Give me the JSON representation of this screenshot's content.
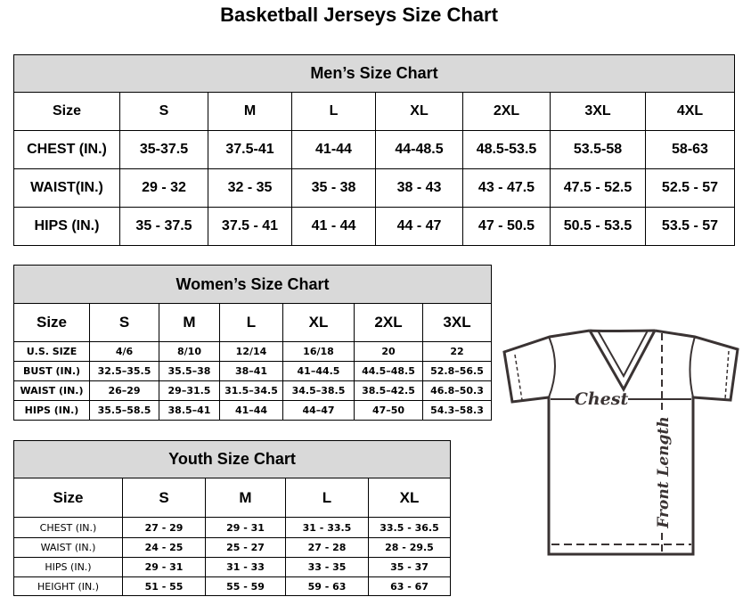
{
  "title": "Basketball Jerseys Size Chart",
  "men": {
    "heading": "Men’s Size Chart",
    "columns": [
      "Size",
      "S",
      "M",
      "L",
      "XL",
      "2XL",
      "3XL",
      "4XL"
    ],
    "rows": [
      [
        "CHEST (IN.)",
        "35-37.5",
        "37.5-41",
        "41-44",
        "44-48.5",
        "48.5-53.5",
        "53.5-58",
        "58-63"
      ],
      [
        "WAIST(IN.)",
        "29 - 32",
        "32 - 35",
        "35 - 38",
        "38 - 43",
        "43 - 47.5",
        "47.5 - 52.5",
        "52.5 - 57"
      ],
      [
        "HIPS (IN.)",
        "35 - 37.5",
        "37.5 - 41",
        "41 - 44",
        "44 - 47",
        "47 - 50.5",
        "50.5 - 53.5",
        "53.5 - 57"
      ]
    ]
  },
  "women": {
    "heading": "Women’s Size Chart",
    "columns": [
      "Size",
      "S",
      "M",
      "L",
      "XL",
      "2XL",
      "3XL"
    ],
    "rows": [
      [
        "U.S. SIZE",
        "4/6",
        "8/10",
        "12/14",
        "16/18",
        "20",
        "22"
      ],
      [
        "BUST (IN.)",
        "32.5–35.5",
        "35.5–38",
        "38–41",
        "41–44.5",
        "44.5–48.5",
        "52.8–56.5"
      ],
      [
        "WAIST (IN.)",
        "26–29",
        "29–31.5",
        "31.5–34.5",
        "34.5–38.5",
        "38.5–42.5",
        "46.8–50.3"
      ],
      [
        "HIPS (IN.)",
        "35.5–58.5",
        "38.5–41",
        "41–44",
        "44–47",
        "47–50",
        "54.3–58.3"
      ]
    ]
  },
  "youth": {
    "heading": "Youth Size Chart",
    "columns": [
      "Size",
      "S",
      "M",
      "L",
      "XL"
    ],
    "rows": [
      [
        "CHEST (IN.)",
        "27 - 29",
        "29 - 31",
        "31 - 33.5",
        "33.5 - 36.5"
      ],
      [
        "WAIST (IN.)",
        "24 - 25",
        "25 - 27",
        "27 - 28",
        "28 - 29.5"
      ],
      [
        "HIPS (IN.)",
        "29 - 31",
        "31 - 33",
        "33 - 35",
        "35 - 37"
      ],
      [
        "HEIGHT (IN.)",
        "51 - 55",
        "55 - 59",
        "59 - 63",
        "63 - 67"
      ]
    ]
  },
  "diagram": {
    "chest_label": "Chest",
    "length_label": "Front Length"
  },
  "colors": {
    "header_bg": "#d9d9d9",
    "shirt_stroke": "#3a3333"
  }
}
